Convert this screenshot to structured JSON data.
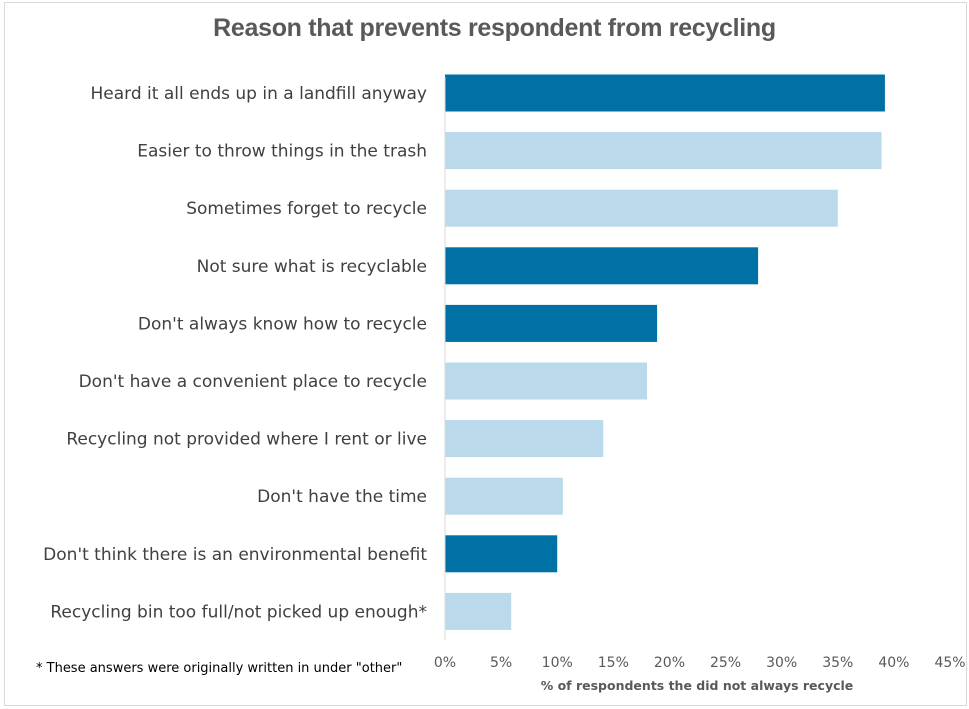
{
  "chart_data": {
    "type": "bar",
    "orientation": "horizontal",
    "title": "Reason that prevents respondent from recycling",
    "xlabel": "% of respondents the did not always recycle",
    "ylabel": "",
    "xlim": [
      0,
      45
    ],
    "xticks": [
      "0%",
      "5%",
      "10%",
      "15%",
      "20%",
      "25%",
      "30%",
      "35%",
      "40%",
      "45%"
    ],
    "grid": false,
    "categories": [
      "Heard it all ends up in a landfill anyway",
      "Easier to throw things in the trash",
      "Sometimes forget to recycle",
      "Not sure what is recyclable",
      "Don't always know how to recycle",
      "Don't have a convenient place to recycle",
      "Recycling not provided where I rent or live",
      "Don't have the time",
      "Don't think there is an environmental benefit",
      "Recycling bin too full/not picked up enough*"
    ],
    "values": [
      39.2,
      38.9,
      35.0,
      27.9,
      18.9,
      18.0,
      14.1,
      10.5,
      10.0,
      5.9
    ],
    "highlighted": [
      true,
      false,
      false,
      true,
      true,
      false,
      false,
      false,
      true,
      false
    ],
    "colors": {
      "highlight": "#0071a4",
      "normal": "#bad9ea"
    },
    "footnote": "* These answers were originally written in under \"other\""
  }
}
